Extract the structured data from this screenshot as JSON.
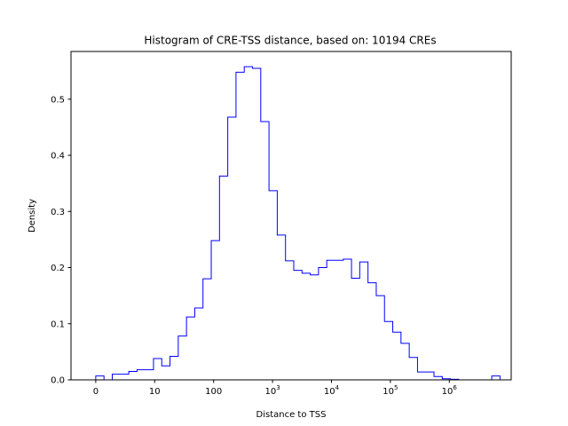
{
  "chart_data": {
    "type": "histogram",
    "title": "Histogram of CRE-TSS distance, based on: 10194 CREs",
    "xlabel": "Distance to TSS",
    "ylabel": "Density",
    "x_scale": "log10(distance + 1)",
    "xlim": [
      -0.42,
      7.05
    ],
    "ylim": [
      0,
      0.585
    ],
    "x_ticks": [
      {
        "value": 0,
        "label": "0"
      },
      {
        "value": 1,
        "label": "10"
      },
      {
        "value": 2,
        "label": "100"
      },
      {
        "value": 3,
        "label": "10",
        "sup": "3"
      },
      {
        "value": 4,
        "label": "10",
        "sup": "4"
      },
      {
        "value": 5,
        "label": "10",
        "sup": "5"
      },
      {
        "value": 6,
        "label": "10",
        "sup": "6"
      }
    ],
    "y_ticks": [
      0.0,
      0.1,
      0.2,
      0.3,
      0.4,
      0.5
    ],
    "y_tick_labels": [
      "0.0",
      "0.1",
      "0.2",
      "0.3",
      "0.4",
      "0.5"
    ],
    "grid": false,
    "line_color": "#0000ff",
    "bin_edges": [
      0,
      0.14,
      0.28,
      0.42,
      0.56,
      0.7,
      0.84,
      0.98,
      1.12,
      1.26,
      1.4,
      1.54,
      1.68,
      1.82,
      1.96,
      2.1,
      2.24,
      2.38,
      2.52,
      2.66,
      2.8,
      2.94,
      3.08,
      3.22,
      3.36,
      3.5,
      3.64,
      3.78,
      3.92,
      4.06,
      4.2,
      4.34,
      4.48,
      4.62,
      4.76,
      4.9,
      5.04,
      5.18,
      5.32,
      5.46,
      5.6,
      5.74,
      5.88,
      6.02,
      6.16,
      6.3,
      6.44,
      6.58,
      6.72,
      6.86
    ],
    "values": [
      0.007,
      0.0,
      0.01,
      0.01,
      0.015,
      0.018,
      0.018,
      0.038,
      0.025,
      0.042,
      0.078,
      0.112,
      0.128,
      0.18,
      0.248,
      0.363,
      0.468,
      0.548,
      0.558,
      0.555,
      0.46,
      0.337,
      0.258,
      0.212,
      0.195,
      0.19,
      0.187,
      0.2,
      0.213,
      0.213,
      0.215,
      0.181,
      0.21,
      0.173,
      0.15,
      0.104,
      0.085,
      0.065,
      0.04,
      0.014,
      0.014,
      0.006,
      0.002,
      0.001,
      0.0,
      0.0,
      0.0,
      0.0,
      0.007
    ]
  }
}
